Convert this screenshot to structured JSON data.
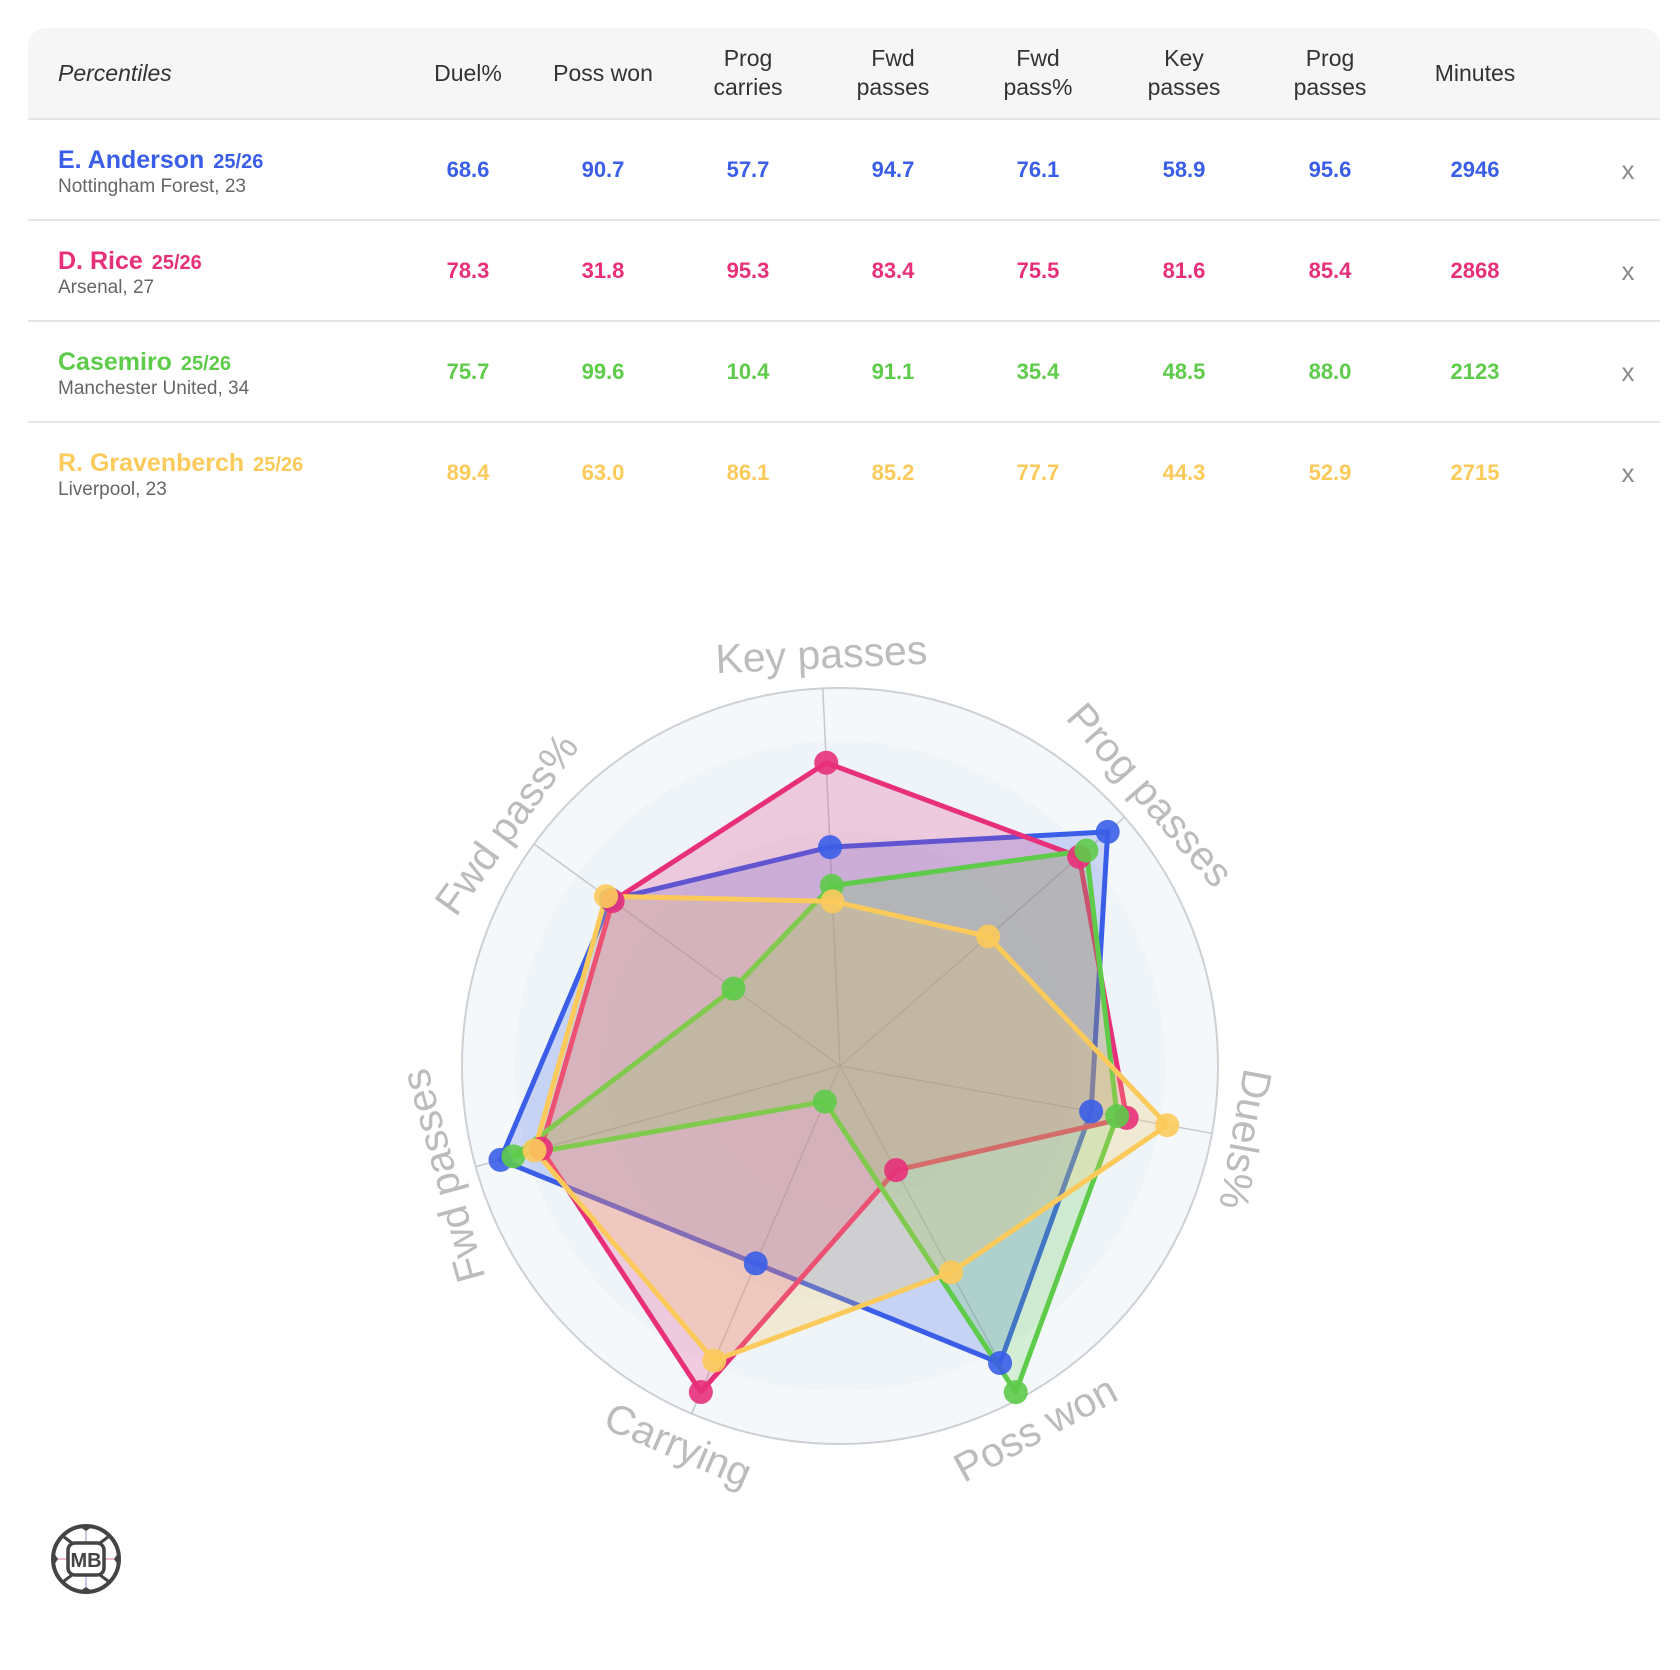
{
  "table": {
    "header_label": "Percentiles",
    "columns": [
      {
        "line1": "Duel%",
        "line2": ""
      },
      {
        "line1": "Poss won",
        "line2": ""
      },
      {
        "line1": "Prog",
        "line2": "carries"
      },
      {
        "line1": "Fwd",
        "line2": "passes"
      },
      {
        "line1": "Fwd",
        "line2": "pass%"
      },
      {
        "line1": "Key",
        "line2": "passes"
      },
      {
        "line1": "Prog",
        "line2": "passes"
      },
      {
        "line1": "Minutes",
        "line2": ""
      }
    ],
    "remove_label": "x",
    "players": [
      {
        "name": "E. Anderson",
        "season": "25/26",
        "team_age": "Nottingham Forest, 23",
        "color": "#3a5ee8",
        "values": [
          "68.6",
          "90.7",
          "57.7",
          "94.7",
          "76.1",
          "58.9",
          "95.6",
          "2946"
        ]
      },
      {
        "name": "D. Rice",
        "season": "25/26",
        "team_age": "Arsenal, 27",
        "color": "#e8307a",
        "values": [
          "78.3",
          "31.8",
          "95.3",
          "83.4",
          "75.5",
          "81.6",
          "85.4",
          "2868"
        ]
      },
      {
        "name": "Casemiro",
        "season": "25/26",
        "team_age": "Manchester United, 34",
        "color": "#5ecb4a",
        "values": [
          "75.7",
          "99.6",
          "10.4",
          "91.1",
          "35.4",
          "48.5",
          "88.0",
          "2123"
        ]
      },
      {
        "name": "R. Gravenberch",
        "season": "25/26",
        "team_age": "Liverpool, 23",
        "color": "#fcca5a",
        "values": [
          "89.4",
          "63.0",
          "86.1",
          "85.2",
          "77.7",
          "44.3",
          "52.9",
          "2715"
        ]
      }
    ]
  },
  "chart_data": {
    "type": "radar",
    "title": "",
    "axes": [
      "Key passes",
      "Prog passes",
      "Duels%",
      "Poss won",
      "Carrying",
      "Fwd passes",
      "Fwd pass%"
    ],
    "range": [
      0,
      100
    ],
    "grid": "concentric circles",
    "series": [
      {
        "name": "E. Anderson 25/26",
        "color": "#3a5ee8",
        "values": [
          58.9,
          95.6,
          68.6,
          90.7,
          57.7,
          94.7,
          76.1
        ]
      },
      {
        "name": "D. Rice 25/26",
        "color": "#e8307a",
        "values": [
          81.6,
          85.4,
          78.3,
          31.8,
          95.3,
          83.4,
          75.5
        ]
      },
      {
        "name": "Casemiro 25/26",
        "color": "#5ecb4a",
        "values": [
          48.5,
          88.0,
          75.7,
          99.6,
          10.4,
          91.1,
          35.4
        ]
      },
      {
        "name": "R. Gravenberch 25/26",
        "color": "#fcca5a",
        "values": [
          44.3,
          52.9,
          89.4,
          63.0,
          86.1,
          85.2,
          77.7
        ]
      }
    ]
  },
  "logo": {
    "text": "MB"
  }
}
